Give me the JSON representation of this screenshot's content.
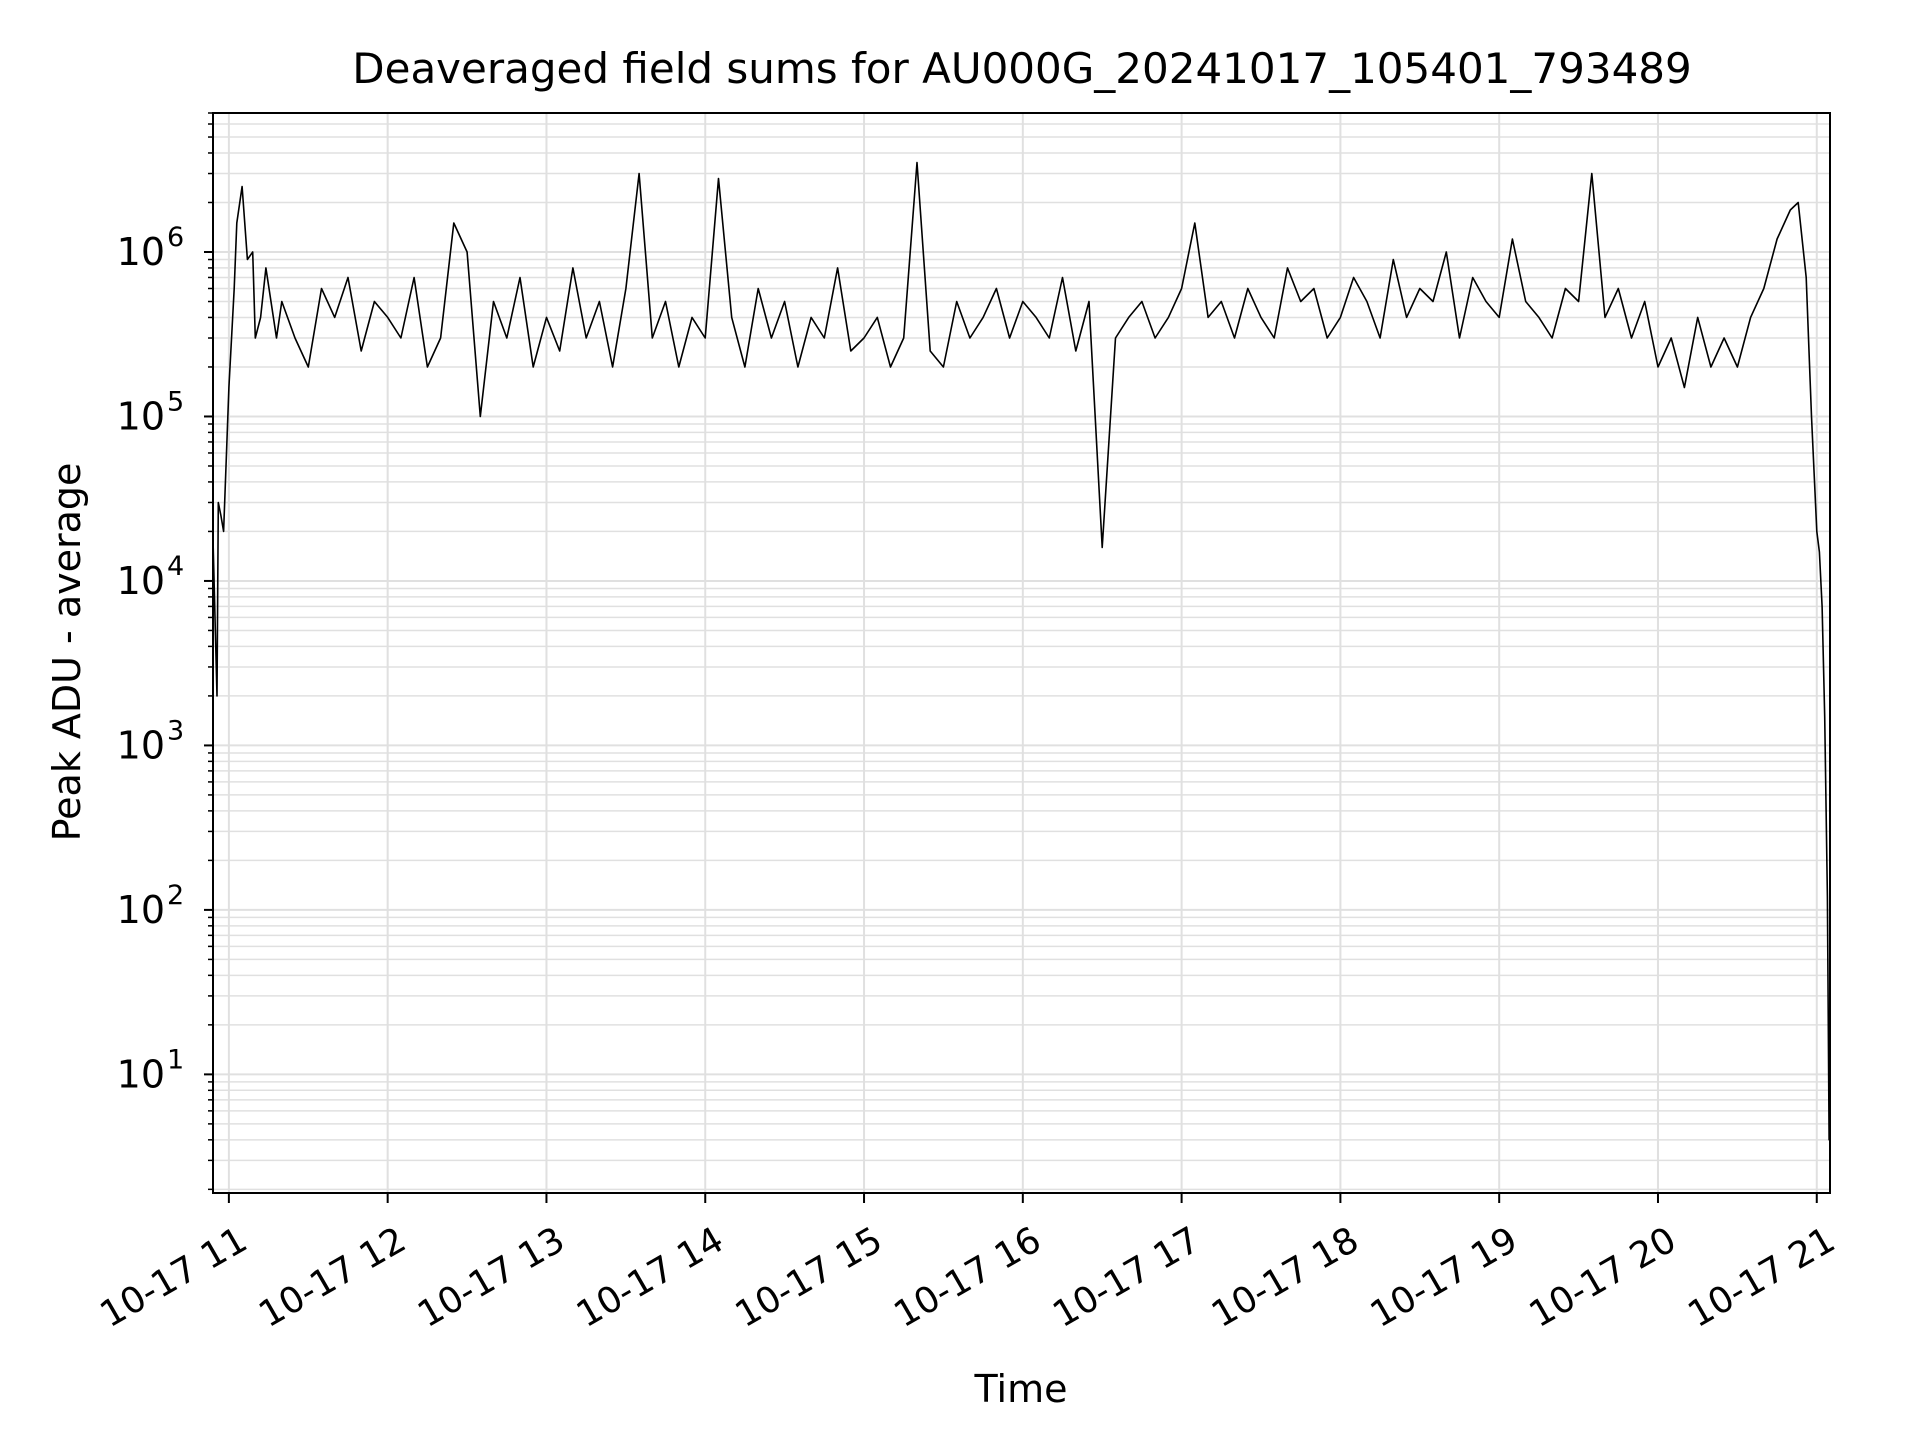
{
  "chart_data": {
    "type": "line",
    "title": "Deaveraged field sums for AU000G_20241017_105401_793489",
    "xlabel": "Time",
    "ylabel": "Peak ADU - average",
    "x_scale": "time",
    "y_scale": "log",
    "xlim": [
      "2024-10-17T10:54:00",
      "2024-10-17T21:05:00"
    ],
    "ylim": [
      1.9,
      7000000
    ],
    "x_ticks": [
      {
        "t": "2024-10-17T11:00:00",
        "label": "10-17 11"
      },
      {
        "t": "2024-10-17T12:00:00",
        "label": "10-17 12"
      },
      {
        "t": "2024-10-17T13:00:00",
        "label": "10-17 13"
      },
      {
        "t": "2024-10-17T14:00:00",
        "label": "10-17 14"
      },
      {
        "t": "2024-10-17T15:00:00",
        "label": "10-17 15"
      },
      {
        "t": "2024-10-17T16:00:00",
        "label": "10-17 16"
      },
      {
        "t": "2024-10-17T17:00:00",
        "label": "10-17 17"
      },
      {
        "t": "2024-10-17T18:00:00",
        "label": "10-17 18"
      },
      {
        "t": "2024-10-17T19:00:00",
        "label": "10-17 19"
      },
      {
        "t": "2024-10-17T20:00:00",
        "label": "10-17 20"
      },
      {
        "t": "2024-10-17T21:00:00",
        "label": "10-17 21"
      }
    ],
    "y_ticks": [
      {
        "value": 10,
        "base": "10",
        "exp": "1"
      },
      {
        "value": 100,
        "base": "10",
        "exp": "2"
      },
      {
        "value": 1000,
        "base": "10",
        "exp": "3"
      },
      {
        "value": 10000,
        "base": "10",
        "exp": "4"
      },
      {
        "value": 100000,
        "base": "10",
        "exp": "5"
      },
      {
        "value": 1000000,
        "base": "10",
        "exp": "6"
      }
    ],
    "grid": {
      "major": true,
      "minor": true,
      "color": "#e0e0e0"
    },
    "line_color": "#000000",
    "series": [
      {
        "x": [
          "2024-10-17T10:54:00",
          "2024-10-17T10:55:30",
          "2024-10-17T10:56:00",
          "2024-10-17T10:57:00",
          "2024-10-17T10:58:00",
          "2024-10-17T11:00:00",
          "2024-10-17T11:02:00",
          "2024-10-17T11:03:00",
          "2024-10-17T11:05:00",
          "2024-10-17T11:07:00",
          "2024-10-17T11:09:00",
          "2024-10-17T11:10:00",
          "2024-10-17T11:12:00",
          "2024-10-17T11:14:00",
          "2024-10-17T11:18:00",
          "2024-10-17T11:20:00",
          "2024-10-17T11:25:00",
          "2024-10-17T11:30:00",
          "2024-10-17T11:35:00",
          "2024-10-17T11:40:00",
          "2024-10-17T11:45:00",
          "2024-10-17T11:50:00",
          "2024-10-17T11:55:00",
          "2024-10-17T12:00:00",
          "2024-10-17T12:05:00",
          "2024-10-17T12:10:00",
          "2024-10-17T12:15:00",
          "2024-10-17T12:20:00",
          "2024-10-17T12:25:00",
          "2024-10-17T12:30:00",
          "2024-10-17T12:35:00",
          "2024-10-17T12:40:00",
          "2024-10-17T12:45:00",
          "2024-10-17T12:50:00",
          "2024-10-17T12:55:00",
          "2024-10-17T13:00:00",
          "2024-10-17T13:05:00",
          "2024-10-17T13:10:00",
          "2024-10-17T13:15:00",
          "2024-10-17T13:20:00",
          "2024-10-17T13:25:00",
          "2024-10-17T13:30:00",
          "2024-10-17T13:35:00",
          "2024-10-17T13:40:00",
          "2024-10-17T13:45:00",
          "2024-10-17T13:50:00",
          "2024-10-17T13:55:00",
          "2024-10-17T14:00:00",
          "2024-10-17T14:05:00",
          "2024-10-17T14:10:00",
          "2024-10-17T14:15:00",
          "2024-10-17T14:20:00",
          "2024-10-17T14:25:00",
          "2024-10-17T14:30:00",
          "2024-10-17T14:35:00",
          "2024-10-17T14:40:00",
          "2024-10-17T14:45:00",
          "2024-10-17T14:50:00",
          "2024-10-17T14:55:00",
          "2024-10-17T15:00:00",
          "2024-10-17T15:05:00",
          "2024-10-17T15:10:00",
          "2024-10-17T15:15:00",
          "2024-10-17T15:20:00",
          "2024-10-17T15:25:00",
          "2024-10-17T15:30:00",
          "2024-10-17T15:35:00",
          "2024-10-17T15:40:00",
          "2024-10-17T15:45:00",
          "2024-10-17T15:50:00",
          "2024-10-17T15:55:00",
          "2024-10-17T16:00:00",
          "2024-10-17T16:05:00",
          "2024-10-17T16:10:00",
          "2024-10-17T16:15:00",
          "2024-10-17T16:20:00",
          "2024-10-17T16:25:00",
          "2024-10-17T16:30:00",
          "2024-10-17T16:35:00",
          "2024-10-17T16:40:00",
          "2024-10-17T16:45:00",
          "2024-10-17T16:50:00",
          "2024-10-17T16:55:00",
          "2024-10-17T17:00:00",
          "2024-10-17T17:05:00",
          "2024-10-17T17:10:00",
          "2024-10-17T17:15:00",
          "2024-10-17T17:20:00",
          "2024-10-17T17:25:00",
          "2024-10-17T17:30:00",
          "2024-10-17T17:35:00",
          "2024-10-17T17:40:00",
          "2024-10-17T17:45:00",
          "2024-10-17T17:50:00",
          "2024-10-17T17:55:00",
          "2024-10-17T18:00:00",
          "2024-10-17T18:05:00",
          "2024-10-17T18:10:00",
          "2024-10-17T18:15:00",
          "2024-10-17T18:20:00",
          "2024-10-17T18:25:00",
          "2024-10-17T18:30:00",
          "2024-10-17T18:35:00",
          "2024-10-17T18:40:00",
          "2024-10-17T18:45:00",
          "2024-10-17T18:50:00",
          "2024-10-17T18:55:00",
          "2024-10-17T19:00:00",
          "2024-10-17T19:05:00",
          "2024-10-17T19:10:00",
          "2024-10-17T19:15:00",
          "2024-10-17T19:20:00",
          "2024-10-17T19:25:00",
          "2024-10-17T19:30:00",
          "2024-10-17T19:35:00",
          "2024-10-17T19:40:00",
          "2024-10-17T19:45:00",
          "2024-10-17T19:50:00",
          "2024-10-17T19:55:00",
          "2024-10-17T20:00:00",
          "2024-10-17T20:05:00",
          "2024-10-17T20:10:00",
          "2024-10-17T20:15:00",
          "2024-10-17T20:20:00",
          "2024-10-17T20:25:00",
          "2024-10-17T20:30:00",
          "2024-10-17T20:35:00",
          "2024-10-17T20:40:00",
          "2024-10-17T20:45:00",
          "2024-10-17T20:50:00",
          "2024-10-17T20:53:00",
          "2024-10-17T20:56:00",
          "2024-10-17T20:58:00",
          "2024-10-17T21:00:00",
          "2024-10-17T21:01:00",
          "2024-10-17T21:02:00",
          "2024-10-17T21:03:00",
          "2024-10-17T21:04:00",
          "2024-10-17T21:04:40",
          "2024-10-17T21:05:00"
        ],
        "y": [
          18000,
          2000,
          30000,
          25000,
          20000,
          150000,
          600000,
          1500000,
          2500000,
          900000,
          1000000,
          300000,
          400000,
          800000,
          300000,
          500000,
          300000,
          200000,
          600000,
          400000,
          700000,
          250000,
          500000,
          400000,
          300000,
          700000,
          200000,
          300000,
          1500000,
          1000000,
          100000,
          500000,
          300000,
          700000,
          200000,
          400000,
          250000,
          800000,
          300000,
          500000,
          200000,
          600000,
          3000000,
          300000,
          500000,
          200000,
          400000,
          300000,
          2800000,
          400000,
          200000,
          600000,
          300000,
          500000,
          200000,
          400000,
          300000,
          800000,
          250000,
          300000,
          400000,
          200000,
          300000,
          3500000,
          250000,
          200000,
          500000,
          300000,
          400000,
          600000,
          300000,
          500000,
          400000,
          300000,
          700000,
          250000,
          500000,
          16000,
          300000,
          400000,
          500000,
          300000,
          400000,
          600000,
          1500000,
          400000,
          500000,
          300000,
          600000,
          400000,
          300000,
          800000,
          500000,
          600000,
          300000,
          400000,
          700000,
          500000,
          300000,
          900000,
          400000,
          600000,
          500000,
          1000000,
          300000,
          700000,
          500000,
          400000,
          1200000,
          500000,
          400000,
          300000,
          600000,
          500000,
          3000000,
          400000,
          600000,
          300000,
          500000,
          200000,
          300000,
          150000,
          400000,
          200000,
          300000,
          200000,
          400000,
          600000,
          1200000,
          1800000,
          2000000,
          700000,
          100000,
          20000,
          15000,
          7000,
          1500,
          120,
          4,
          4
        ]
      }
    ]
  }
}
